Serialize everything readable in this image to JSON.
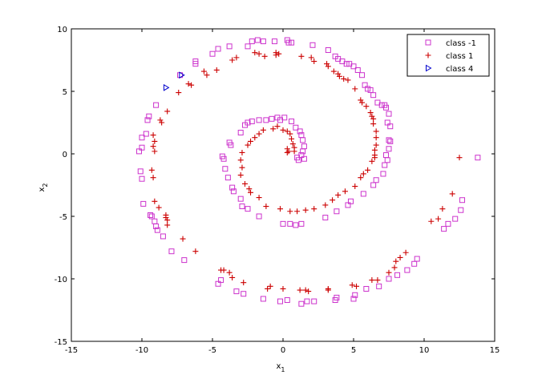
{
  "chart_data": {
    "type": "scatter",
    "title": "",
    "xlabel": "x",
    "xlabel_sub": "1",
    "ylabel": "x",
    "ylabel_sub": "2",
    "xlim": [
      -15,
      15
    ],
    "ylim": [
      -15,
      10
    ],
    "xticks": [
      -15,
      -10,
      -5,
      0,
      5,
      10,
      15
    ],
    "yticks": [
      -15,
      -10,
      -5,
      0,
      5,
      10
    ],
    "grid": false,
    "legend_position": "top-right",
    "series": [
      {
        "name": "class -1",
        "marker": "square",
        "color": "#cc33cc",
        "points": [
          [
            13.8,
            -0.3
          ],
          [
            12.7,
            -3.7
          ],
          [
            12.6,
            -4.5
          ],
          [
            12.2,
            -5.2
          ],
          [
            11.7,
            -5.6
          ],
          [
            11.4,
            -6.0
          ],
          [
            9.5,
            -8.4
          ],
          [
            9.3,
            -8.8
          ],
          [
            8.8,
            -9.3
          ],
          [
            8.1,
            -9.7
          ],
          [
            7.5,
            -10.0
          ],
          [
            6.8,
            -10.6
          ],
          [
            5.9,
            -10.8
          ],
          [
            5.1,
            -11.3
          ],
          [
            5.0,
            -11.6
          ],
          [
            3.8,
            -11.5
          ],
          [
            3.7,
            -11.7
          ],
          [
            2.2,
            -11.8
          ],
          [
            1.7,
            -11.8
          ],
          [
            1.3,
            -12.0
          ],
          [
            0.3,
            -11.7
          ],
          [
            -0.2,
            -11.8
          ],
          [
            -1.4,
            -11.6
          ],
          [
            -2.8,
            -11.2
          ],
          [
            -3.3,
            -11.0
          ],
          [
            -4.6,
            -10.4
          ],
          [
            -4.4,
            -10.1
          ],
          [
            -7.0,
            -8.5
          ],
          [
            -7.9,
            -7.8
          ],
          [
            -8.5,
            -6.6
          ],
          [
            -8.9,
            -6.1
          ],
          [
            -9.0,
            -5.8
          ],
          [
            -9.1,
            -5.4
          ],
          [
            -9.3,
            -5.0
          ],
          [
            -9.4,
            -4.9
          ],
          [
            -9.9,
            -4.0
          ],
          [
            -10.0,
            -2.0
          ],
          [
            -10.1,
            -1.4
          ],
          [
            -10.2,
            0.2
          ],
          [
            -10.0,
            0.5
          ],
          [
            -10.0,
            1.3
          ],
          [
            -9.7,
            1.6
          ],
          [
            -9.6,
            2.7
          ],
          [
            -9.5,
            3.0
          ],
          [
            -9.0,
            3.9
          ],
          [
            -7.3,
            6.3
          ],
          [
            -6.2,
            7.2
          ],
          [
            -6.2,
            7.4
          ],
          [
            -5.0,
            8.0
          ],
          [
            -4.6,
            8.4
          ],
          [
            -3.8,
            8.6
          ],
          [
            -2.5,
            8.6
          ],
          [
            -2.2,
            9.0
          ],
          [
            -1.8,
            9.1
          ],
          [
            -1.4,
            9.0
          ],
          [
            -0.6,
            9.0
          ],
          [
            0.3,
            9.1
          ],
          [
            0.4,
            8.9
          ],
          [
            0.6,
            8.9
          ],
          [
            2.1,
            8.7
          ],
          [
            3.2,
            8.3
          ],
          [
            3.7,
            7.8
          ],
          [
            3.9,
            7.6
          ],
          [
            4.2,
            7.4
          ],
          [
            4.5,
            7.2
          ],
          [
            4.7,
            7.2
          ],
          [
            5.0,
            7.0
          ],
          [
            5.3,
            6.7
          ],
          [
            5.6,
            6.3
          ],
          [
            5.8,
            5.5
          ],
          [
            6.0,
            5.2
          ],
          [
            6.2,
            5.1
          ],
          [
            6.4,
            4.7
          ],
          [
            6.7,
            4.1
          ],
          [
            7.0,
            3.9
          ],
          [
            7.2,
            3.9
          ],
          [
            7.3,
            3.7
          ],
          [
            7.5,
            3.2
          ],
          [
            7.4,
            2.5
          ],
          [
            7.6,
            2.2
          ],
          [
            7.5,
            1.1
          ],
          [
            7.6,
            1.0
          ],
          [
            7.5,
            0.4
          ],
          [
            7.3,
            -0.1
          ],
          [
            7.4,
            -0.5
          ],
          [
            7.2,
            -0.9
          ],
          [
            7.1,
            -1.6
          ],
          [
            6.6,
            -2.1
          ],
          [
            6.4,
            -2.5
          ],
          [
            5.7,
            -3.2
          ],
          [
            4.8,
            -3.8
          ],
          [
            4.6,
            -4.1
          ],
          [
            3.8,
            -4.6
          ],
          [
            3.0,
            -5.1
          ],
          [
            1.3,
            -5.6
          ],
          [
            0.9,
            -5.7
          ],
          [
            0.5,
            -5.6
          ],
          [
            0.0,
            -5.6
          ],
          [
            -1.7,
            -5.0
          ],
          [
            -2.5,
            -4.4
          ],
          [
            -2.9,
            -4.2
          ],
          [
            -3.0,
            -3.6
          ],
          [
            -3.5,
            -3.0
          ],
          [
            -3.6,
            -2.7
          ],
          [
            -3.9,
            -1.9
          ],
          [
            -4.1,
            -1.2
          ],
          [
            -4.2,
            -0.4
          ],
          [
            -4.3,
            -0.2
          ],
          [
            -3.7,
            0.7
          ],
          [
            -3.8,
            0.9
          ],
          [
            -3.0,
            1.7
          ],
          [
            -2.7,
            2.3
          ],
          [
            -2.5,
            2.5
          ],
          [
            -2.2,
            2.6
          ],
          [
            -1.7,
            2.7
          ],
          [
            -1.2,
            2.7
          ],
          [
            -0.8,
            2.8
          ],
          [
            -0.4,
            2.9
          ],
          [
            -0.2,
            2.7
          ],
          [
            0.1,
            2.9
          ],
          [
            0.6,
            2.6
          ],
          [
            0.9,
            2.1
          ],
          [
            1.2,
            1.8
          ],
          [
            1.3,
            1.5
          ],
          [
            1.4,
            1.1
          ],
          [
            1.5,
            0.6
          ],
          [
            1.4,
            0.2
          ],
          [
            1.3,
            -0.1
          ],
          [
            1.5,
            -0.4
          ],
          [
            1.1,
            -0.5
          ],
          [
            1.0,
            -0.3
          ]
        ]
      },
      {
        "name": "class 1",
        "marker": "plus",
        "color": "#cc0000",
        "points": [
          [
            12.5,
            -0.3
          ],
          [
            12.0,
            -3.2
          ],
          [
            11.3,
            -4.4
          ],
          [
            11.0,
            -5.2
          ],
          [
            10.5,
            -5.4
          ],
          [
            8.7,
            -7.9
          ],
          [
            8.3,
            -8.3
          ],
          [
            8.0,
            -8.6
          ],
          [
            7.9,
            -9.1
          ],
          [
            7.5,
            -9.5
          ],
          [
            6.7,
            -10.1
          ],
          [
            6.3,
            -10.1
          ],
          [
            5.2,
            -10.6
          ],
          [
            4.9,
            -10.5
          ],
          [
            3.2,
            -10.8
          ],
          [
            3.2,
            -10.9
          ],
          [
            1.8,
            -11.0
          ],
          [
            1.6,
            -10.9
          ],
          [
            1.2,
            -10.9
          ],
          [
            0.0,
            -10.8
          ],
          [
            -0.9,
            -10.6
          ],
          [
            -1.1,
            -10.8
          ],
          [
            -2.8,
            -10.3
          ],
          [
            -3.6,
            -9.9
          ],
          [
            -3.8,
            -9.5
          ],
          [
            -4.2,
            -9.3
          ],
          [
            -4.4,
            -9.3
          ],
          [
            -6.2,
            -7.8
          ],
          [
            -7.1,
            -6.8
          ],
          [
            -8.2,
            -5.7
          ],
          [
            -8.2,
            -5.3
          ],
          [
            -8.3,
            -5.1
          ],
          [
            -8.3,
            -4.9
          ],
          [
            -8.8,
            -4.3
          ],
          [
            -9.1,
            -3.8
          ],
          [
            -9.2,
            -1.9
          ],
          [
            -9.3,
            -1.3
          ],
          [
            -9.1,
            0.2
          ],
          [
            -9.2,
            0.6
          ],
          [
            -9.1,
            1.0
          ],
          [
            -9.2,
            1.5
          ],
          [
            -8.6,
            2.5
          ],
          [
            -8.7,
            2.7
          ],
          [
            -8.2,
            3.4
          ],
          [
            -7.4,
            4.9
          ],
          [
            -6.7,
            5.6
          ],
          [
            -6.5,
            5.5
          ],
          [
            -5.6,
            6.6
          ],
          [
            -5.4,
            6.3
          ],
          [
            -4.7,
            6.7
          ],
          [
            -3.6,
            7.5
          ],
          [
            -3.3,
            7.7
          ],
          [
            -2.0,
            8.1
          ],
          [
            -1.7,
            8.0
          ],
          [
            -1.3,
            7.8
          ],
          [
            -0.5,
            8.1
          ],
          [
            -0.5,
            7.9
          ],
          [
            -0.3,
            8.0
          ],
          [
            1.3,
            7.8
          ],
          [
            2.0,
            7.7
          ],
          [
            2.2,
            7.4
          ],
          [
            3.1,
            7.2
          ],
          [
            3.2,
            7.0
          ],
          [
            3.6,
            6.6
          ],
          [
            3.9,
            6.4
          ],
          [
            4.0,
            6.2
          ],
          [
            4.3,
            6.0
          ],
          [
            4.6,
            5.9
          ],
          [
            5.1,
            5.2
          ],
          [
            5.5,
            4.3
          ],
          [
            5.6,
            4.1
          ],
          [
            5.9,
            3.8
          ],
          [
            6.2,
            3.3
          ],
          [
            6.3,
            3.0
          ],
          [
            6.4,
            2.8
          ],
          [
            6.4,
            2.4
          ],
          [
            6.6,
            1.8
          ],
          [
            6.6,
            1.3
          ],
          [
            6.6,
            0.7
          ],
          [
            6.5,
            0.3
          ],
          [
            6.5,
            -0.1
          ],
          [
            6.5,
            -0.3
          ],
          [
            6.3,
            -0.6
          ],
          [
            6.0,
            -1.3
          ],
          [
            5.7,
            -1.6
          ],
          [
            5.5,
            -1.9
          ],
          [
            5.1,
            -2.6
          ],
          [
            4.4,
            -3.0
          ],
          [
            3.9,
            -3.3
          ],
          [
            3.5,
            -3.7
          ],
          [
            3.0,
            -4.1
          ],
          [
            2.2,
            -4.4
          ],
          [
            1.6,
            -4.5
          ],
          [
            1.0,
            -4.6
          ],
          [
            0.5,
            -4.6
          ],
          [
            -0.2,
            -4.4
          ],
          [
            -1.2,
            -4.2
          ],
          [
            -1.7,
            -3.5
          ],
          [
            -2.3,
            -3.1
          ],
          [
            -2.4,
            -2.8
          ],
          [
            -2.7,
            -2.4
          ],
          [
            -3.0,
            -1.7
          ],
          [
            -2.9,
            -1.1
          ],
          [
            -3.0,
            -0.5
          ],
          [
            -2.9,
            0.1
          ],
          [
            -2.5,
            0.7
          ],
          [
            -2.3,
            1.0
          ],
          [
            -2.0,
            1.3
          ],
          [
            -1.7,
            1.6
          ],
          [
            -1.4,
            1.9
          ],
          [
            -0.7,
            2.0
          ],
          [
            -0.4,
            2.2
          ],
          [
            0.0,
            1.9
          ],
          [
            0.3,
            1.8
          ],
          [
            0.5,
            1.6
          ],
          [
            0.6,
            1.2
          ],
          [
            0.7,
            0.8
          ],
          [
            0.8,
            0.5
          ],
          [
            0.8,
            0.2
          ],
          [
            0.4,
            0.2
          ],
          [
            0.3,
            0.4
          ],
          [
            0.3,
            0.1
          ]
        ]
      },
      {
        "name": "class 4",
        "marker": "triangle-right",
        "color": "#0000cc",
        "points": [
          [
            -7.2,
            6.3
          ],
          [
            -8.3,
            5.3
          ]
        ]
      }
    ]
  }
}
